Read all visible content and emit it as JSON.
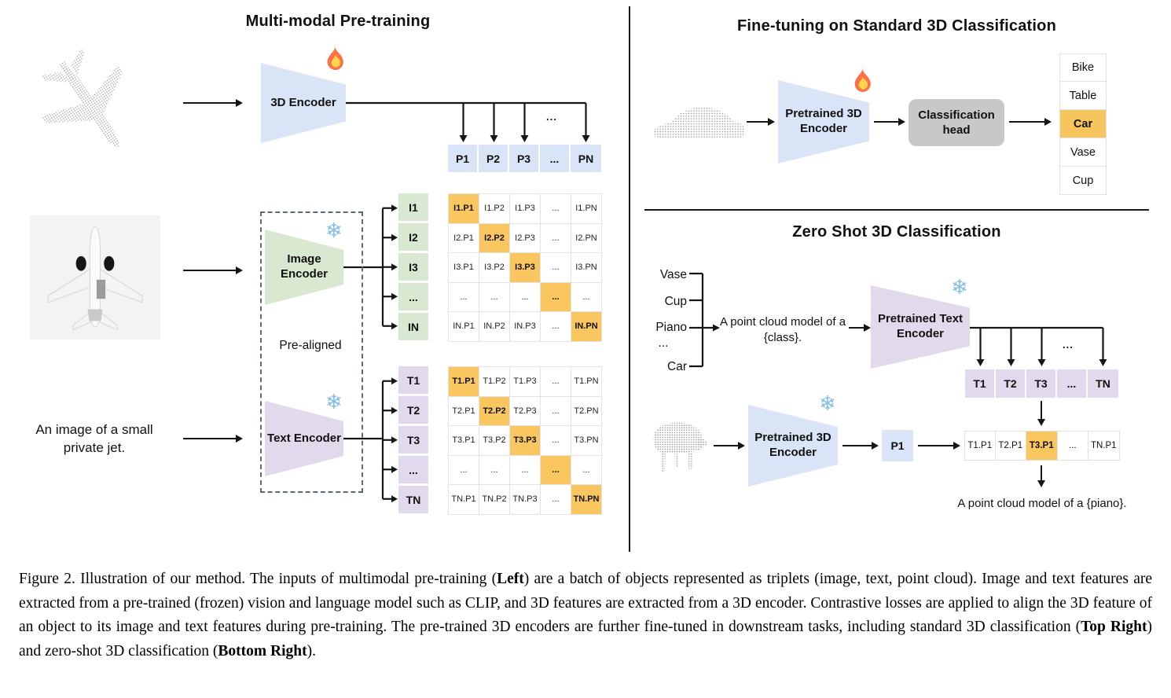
{
  "ellipsis": "...",
  "icons": {
    "snowflake": "❄",
    "fire": "flame"
  },
  "colors": {
    "highlight_orange": "#f9c65f",
    "cell_blue": "#d9e4f6",
    "cell_green": "#d9e8d1",
    "cell_purple": "#e3d9ed",
    "head_gray": "#c8c8c8"
  },
  "left_panel": {
    "title": "Multi-modal Pre-training",
    "encoder_3d": {
      "label": "3D Encoder"
    },
    "image_encoder": {
      "label": "Image Encoder"
    },
    "text_encoder": {
      "label": "Text Encoder"
    },
    "pre_aligned_label": "Pre-aligned",
    "text_input": "An image of a small private jet.",
    "p_header": [
      "P1",
      "P2",
      "P3",
      "...",
      "PN"
    ],
    "image_rows": [
      "I1",
      "I2",
      "I3",
      "...",
      "IN"
    ],
    "text_rows": [
      "T1",
      "T2",
      "T3",
      "...",
      "TN"
    ],
    "image_matrix": [
      [
        "I1.P1",
        "I1.P2",
        "I1.P3",
        "...",
        "I1.PN"
      ],
      [
        "I2.P1",
        "I2.P2",
        "I2.P3",
        "...",
        "I2.PN"
      ],
      [
        "I3.P1",
        "I3.P2",
        "I3.P3",
        "...",
        "I3.PN"
      ],
      [
        "...",
        "...",
        "...",
        "...",
        "..."
      ],
      [
        "IN.P1",
        "IN.P2",
        "IN.P3",
        "...",
        "IN.PN"
      ]
    ],
    "text_matrix": [
      [
        "T1.P1",
        "T1.P2",
        "T1.P3",
        "...",
        "T1.PN"
      ],
      [
        "T2.P1",
        "T2.P2",
        "T2.P3",
        "...",
        "T2.PN"
      ],
      [
        "T3.P1",
        "T3.P2",
        "T3.P3",
        "...",
        "T3.PN"
      ],
      [
        "...",
        "...",
        "...",
        "...",
        "..."
      ],
      [
        "TN.P1",
        "TN.P2",
        "TN.P3",
        "...",
        "TN.PN"
      ]
    ]
  },
  "right_top": {
    "title": "Fine-tuning on Standard 3D Classification",
    "encoder": {
      "label": "Pretrained 3D Encoder"
    },
    "head": {
      "label": "Classification head"
    },
    "classes": [
      {
        "label": "Bike"
      },
      {
        "label": "Table"
      },
      {
        "label": "Car",
        "highlight": true
      },
      {
        "label": "Vase"
      },
      {
        "label": "Cup"
      }
    ]
  },
  "right_bottom": {
    "title": "Zero Shot 3D Classification",
    "classes": [
      "Vase",
      "Cup",
      "Piano",
      "...",
      "Car"
    ],
    "prompt": "A point cloud model of a {class}.",
    "text_encoder": {
      "label": "Pretrained Text Encoder"
    },
    "encoder_3d": {
      "label": "Pretrained 3D Encoder"
    },
    "p1_label": "P1",
    "t_row": [
      "T1",
      "T2",
      "T3",
      "...",
      "TN"
    ],
    "result_row": [
      {
        "label": "T1.P1"
      },
      {
        "label": "T2.P1"
      },
      {
        "label": "T3.P1",
        "highlight": true
      },
      {
        "label": "..."
      },
      {
        "label": "TN.P1"
      }
    ],
    "result_caption": "A point cloud model of a {piano}."
  },
  "caption": {
    "segments": [
      {
        "text": "Figure 2. Illustration of our method. The inputs of multimodal pre-training (",
        "bold": false
      },
      {
        "text": "Left",
        "bold": true
      },
      {
        "text": ") are a batch of objects represented as triplets (image, text, point cloud). Image and text features are extracted from a pre-trained (frozen) vision and language model such as CLIP, and 3D features are extracted from a 3D encoder. Contrastive losses are applied to align the 3D feature of an object to its image and text features during pre-training. The pre-trained 3D encoders are further fine-tuned in downstream tasks, including standard 3D classification (",
        "bold": false
      },
      {
        "text": "Top Right",
        "bold": true
      },
      {
        "text": ") and zero-shot 3D classification (",
        "bold": false
      },
      {
        "text": "Bottom Right",
        "bold": true
      },
      {
        "text": ").",
        "bold": false
      }
    ]
  }
}
